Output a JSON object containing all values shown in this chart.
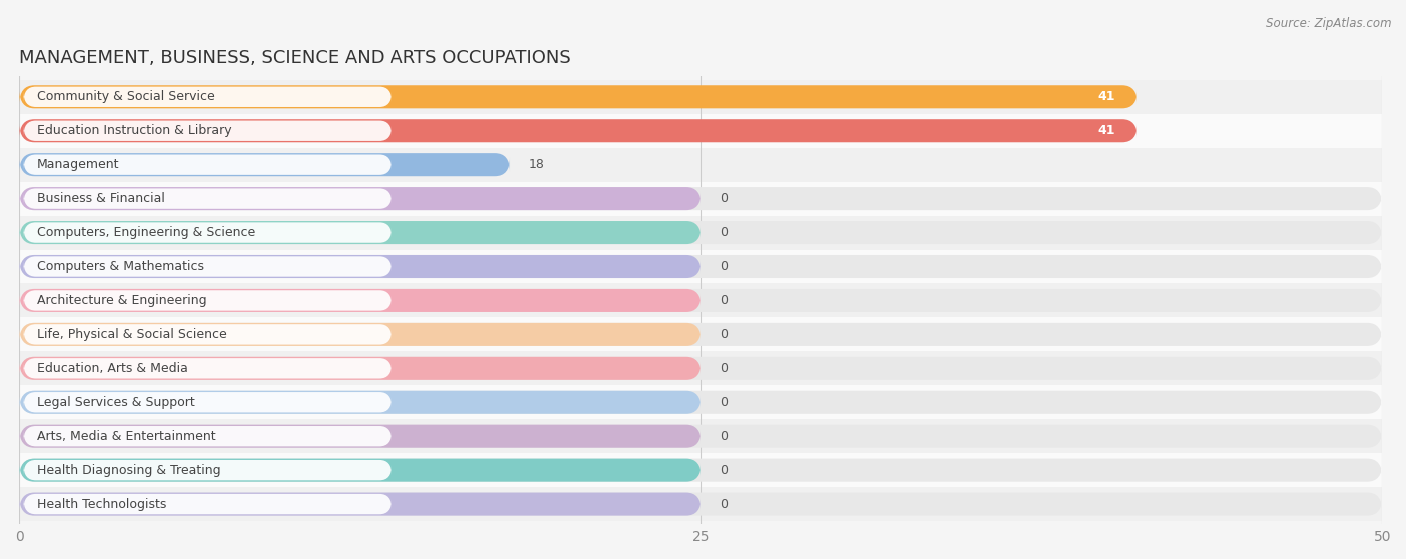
{
  "title": "MANAGEMENT, BUSINESS, SCIENCE AND ARTS OCCUPATIONS",
  "source": "Source: ZipAtlas.com",
  "categories": [
    "Community & Social Service",
    "Education Instruction & Library",
    "Management",
    "Business & Financial",
    "Computers, Engineering & Science",
    "Computers & Mathematics",
    "Architecture & Engineering",
    "Life, Physical & Social Science",
    "Education, Arts & Media",
    "Legal Services & Support",
    "Arts, Media & Entertainment",
    "Health Diagnosing & Treating",
    "Health Technologists"
  ],
  "values": [
    41,
    41,
    18,
    0,
    0,
    0,
    0,
    0,
    0,
    0,
    0,
    0,
    0
  ],
  "colors": [
    "#F5A940",
    "#E8736A",
    "#92B8E0",
    "#C9A8D4",
    "#7ECFC0",
    "#B0AEDE",
    "#F4A0B0",
    "#F8C89A",
    "#F4A0A8",
    "#A8C8E8",
    "#C8A8CC",
    "#6EC8C0",
    "#B8B0DC"
  ],
  "xlim": [
    0,
    50
  ],
  "xticks": [
    0,
    25,
    50
  ],
  "background_color": "#f5f5f5",
  "bar_bg_color": "#e0e0e0",
  "row_bg_even": "#f0f0f0",
  "row_bg_odd": "#fafafa",
  "title_fontsize": 13,
  "label_fontsize": 9,
  "value_fontsize": 9,
  "zero_bar_extent": 25
}
